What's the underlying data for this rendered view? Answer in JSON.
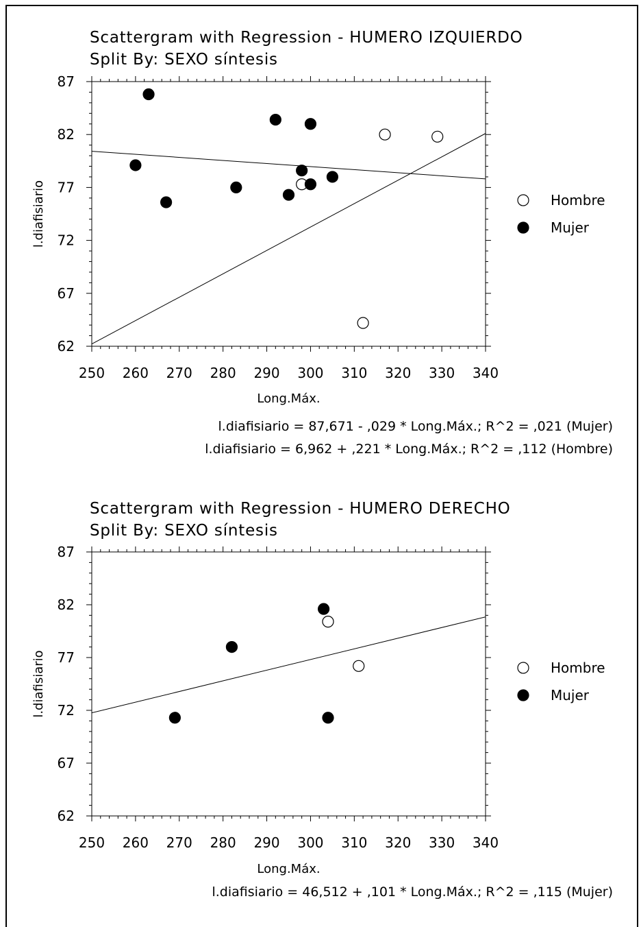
{
  "chart_data": [
    {
      "type": "scatter",
      "title": "Scattergram with Regression - HUMERO IZQUIERDO",
      "subtitle": "Split By: SEXO síntesis",
      "xlabel": "Long.Máx.",
      "ylabel": "l.diafisiario",
      "xlim": [
        250,
        340
      ],
      "ylim": [
        62,
        87
      ],
      "xticks": [
        250,
        260,
        270,
        280,
        290,
        300,
        310,
        320,
        330,
        340
      ],
      "yticks": [
        62,
        67,
        72,
        77,
        82,
        87
      ],
      "legend": "right",
      "series": [
        {
          "name": "Hombre",
          "marker": "open-circle",
          "points": [
            [
              298,
              77.3
            ],
            [
              312,
              64.2
            ],
            [
              317,
              82
            ],
            [
              329,
              81.8
            ]
          ]
        },
        {
          "name": "Mujer",
          "marker": "filled-circle",
          "points": [
            [
              260,
              79.1
            ],
            [
              263,
              85.8
            ],
            [
              267,
              75.6
            ],
            [
              283,
              77
            ],
            [
              292,
              83.4
            ],
            [
              295,
              76.3
            ],
            [
              298,
              78.6
            ],
            [
              300,
              77.3
            ],
            [
              300,
              83
            ],
            [
              305,
              78
            ]
          ]
        }
      ],
      "regression_lines": [
        {
          "series": "Mujer",
          "intercept": 87.671,
          "slope": -0.029
        },
        {
          "series": "Hombre",
          "intercept": 6.962,
          "slope": 0.221
        }
      ],
      "equations": [
        "l.diafisiario = 87,671 - ,029 * Long.Máx.; R^2 = ,021 (Mujer)",
        "l.diafisiario = 6,962 + ,221 * Long.Máx.; R^2 = ,112 (Hombre)"
      ]
    },
    {
      "type": "scatter",
      "title": "Scattergram with Regression - HUMERO DERECHO",
      "subtitle": "Split By: SEXO síntesis",
      "xlabel": "Long.Máx.",
      "ylabel": "l.diafisiario",
      "xlim": [
        250,
        340
      ],
      "ylim": [
        62,
        87
      ],
      "xticks": [
        250,
        260,
        270,
        280,
        290,
        300,
        310,
        320,
        330,
        340
      ],
      "yticks": [
        62,
        67,
        72,
        77,
        82,
        87
      ],
      "legend": "right",
      "series": [
        {
          "name": "Hombre",
          "marker": "open-circle",
          "points": [
            [
              304,
              80.4
            ],
            [
              311,
              76.2
            ]
          ]
        },
        {
          "name": "Mujer",
          "marker": "filled-circle",
          "points": [
            [
              269,
              71.3
            ],
            [
              282,
              78
            ],
            [
              303,
              81.6
            ],
            [
              304,
              71.3
            ]
          ]
        }
      ],
      "regression_lines": [
        {
          "series": "Mujer",
          "intercept": 46.512,
          "slope": 0.101
        }
      ],
      "equations": [
        "l.diafisiario = 46,512 + ,101 * Long.Máx.; R^2 = ,115 (Mujer)"
      ]
    }
  ]
}
